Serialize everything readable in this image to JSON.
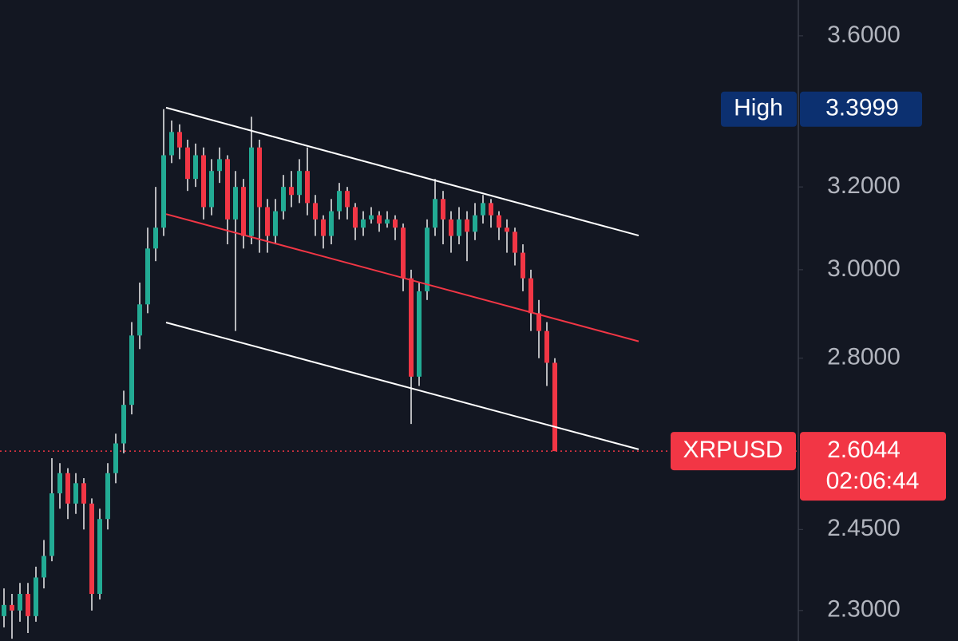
{
  "chart_data": {
    "type": "candlestick",
    "symbol": "XRPUSD",
    "log_scale": true,
    "ylim": [
      2.246,
      3.702
    ],
    "yticks": [
      {
        "value": 3.6,
        "label": "3.6000"
      },
      {
        "value": 3.2,
        "label": "3.2000"
      },
      {
        "value": 3.0,
        "label": "3.0000"
      },
      {
        "value": 2.8,
        "label": "2.8000"
      },
      {
        "value": 2.45,
        "label": "2.4500"
      },
      {
        "value": 2.3,
        "label": "2.3000"
      }
    ],
    "grid": false,
    "up_color": "#22ab94",
    "down_color": "#f23645",
    "wick_color": "#ffffff",
    "high_label": "High",
    "high_value": 3.3999,
    "last_price": 2.6044,
    "countdown": "02:06:44",
    "ohlc": [
      [
        2.29,
        2.34,
        2.27,
        2.31
      ],
      [
        2.31,
        2.33,
        2.25,
        2.3
      ],
      [
        2.3,
        2.35,
        2.28,
        2.33
      ],
      [
        2.33,
        2.35,
        2.26,
        2.29
      ],
      [
        2.29,
        2.38,
        2.28,
        2.36
      ],
      [
        2.36,
        2.43,
        2.34,
        2.4
      ],
      [
        2.4,
        2.59,
        2.39,
        2.52
      ],
      [
        2.52,
        2.58,
        2.49,
        2.56
      ],
      [
        2.56,
        2.57,
        2.47,
        2.5
      ],
      [
        2.5,
        2.56,
        2.48,
        2.54
      ],
      [
        2.54,
        2.55,
        2.45,
        2.5
      ],
      [
        2.5,
        2.51,
        2.3,
        2.33
      ],
      [
        2.33,
        2.49,
        2.32,
        2.47
      ],
      [
        2.47,
        2.58,
        2.45,
        2.56
      ],
      [
        2.56,
        2.64,
        2.54,
        2.62
      ],
      [
        2.62,
        2.73,
        2.6,
        2.7
      ],
      [
        2.7,
        2.88,
        2.68,
        2.85
      ],
      [
        2.85,
        2.97,
        2.82,
        2.92
      ],
      [
        2.92,
        3.1,
        2.9,
        3.05
      ],
      [
        3.05,
        3.2,
        3.02,
        3.1
      ],
      [
        3.1,
        3.3999,
        3.08,
        3.28
      ],
      [
        3.28,
        3.37,
        3.26,
        3.34
      ],
      [
        3.34,
        3.36,
        3.27,
        3.3
      ],
      [
        3.3,
        3.32,
        3.19,
        3.22
      ],
      [
        3.22,
        3.31,
        3.2,
        3.28
      ],
      [
        3.28,
        3.3,
        3.12,
        3.15
      ],
      [
        3.15,
        3.27,
        3.13,
        3.24
      ],
      [
        3.24,
        3.3,
        3.21,
        3.27
      ],
      [
        3.27,
        3.28,
        3.06,
        3.12
      ],
      [
        3.12,
        3.24,
        2.86,
        3.2
      ],
      [
        3.2,
        3.22,
        3.05,
        3.08
      ],
      [
        3.08,
        3.38,
        3.06,
        3.3
      ],
      [
        3.3,
        3.32,
        3.04,
        3.15
      ],
      [
        3.15,
        3.17,
        3.04,
        3.08
      ],
      [
        3.08,
        3.17,
        3.06,
        3.14
      ],
      [
        3.14,
        3.23,
        3.12,
        3.2
      ],
      [
        3.2,
        3.24,
        3.15,
        3.18
      ],
      [
        3.18,
        3.27,
        3.16,
        3.24
      ],
      [
        3.24,
        3.3,
        3.13,
        3.16
      ],
      [
        3.16,
        3.18,
        3.08,
        3.12
      ],
      [
        3.12,
        3.13,
        3.05,
        3.08
      ],
      [
        3.08,
        3.17,
        3.06,
        3.14
      ],
      [
        3.14,
        3.21,
        3.12,
        3.19
      ],
      [
        3.19,
        3.2,
        3.12,
        3.15
      ],
      [
        3.15,
        3.16,
        3.07,
        3.1
      ],
      [
        3.1,
        3.14,
        3.08,
        3.12
      ],
      [
        3.12,
        3.15,
        3.11,
        3.13
      ],
      [
        3.13,
        3.14,
        3.09,
        3.11
      ],
      [
        3.11,
        3.14,
        3.1,
        3.12
      ],
      [
        3.12,
        3.13,
        3.07,
        3.1
      ],
      [
        3.1,
        3.11,
        2.95,
        2.98
      ],
      [
        2.98,
        3.0,
        2.66,
        2.76
      ],
      [
        2.76,
        2.97,
        2.74,
        2.95
      ],
      [
        2.95,
        3.12,
        2.93,
        3.1
      ],
      [
        3.1,
        3.22,
        3.08,
        3.17
      ],
      [
        3.17,
        3.19,
        3.06,
        3.12
      ],
      [
        3.12,
        3.14,
        3.04,
        3.08
      ],
      [
        3.08,
        3.15,
        3.06,
        3.12
      ],
      [
        3.12,
        3.14,
        3.02,
        3.09
      ],
      [
        3.09,
        3.16,
        3.07,
        3.13
      ],
      [
        3.13,
        3.18,
        3.11,
        3.16
      ],
      [
        3.16,
        3.17,
        3.1,
        3.13
      ],
      [
        3.13,
        3.14,
        3.07,
        3.1
      ],
      [
        3.1,
        3.12,
        3.04,
        3.09
      ],
      [
        3.09,
        3.1,
        3.01,
        3.04
      ],
      [
        3.04,
        3.06,
        2.95,
        2.98
      ],
      [
        2.98,
        3.0,
        2.86,
        2.9
      ],
      [
        2.9,
        2.93,
        2.8,
        2.86
      ],
      [
        2.86,
        2.88,
        2.74,
        2.79
      ],
      [
        2.79,
        2.8,
        2.6044,
        2.6044
      ]
    ],
    "trend_lines": [
      {
        "color": "#ffffff",
        "points": [
          [
            20.3,
            3.404
          ],
          [
            79.5,
            3.081
          ]
        ]
      },
      {
        "color": "#f23645",
        "points": [
          [
            20.3,
            3.133
          ],
          [
            79.5,
            2.837
          ]
        ]
      },
      {
        "color": "#ffffff",
        "points": [
          [
            20.3,
            2.879
          ],
          [
            79.5,
            2.608
          ]
        ]
      }
    ]
  }
}
